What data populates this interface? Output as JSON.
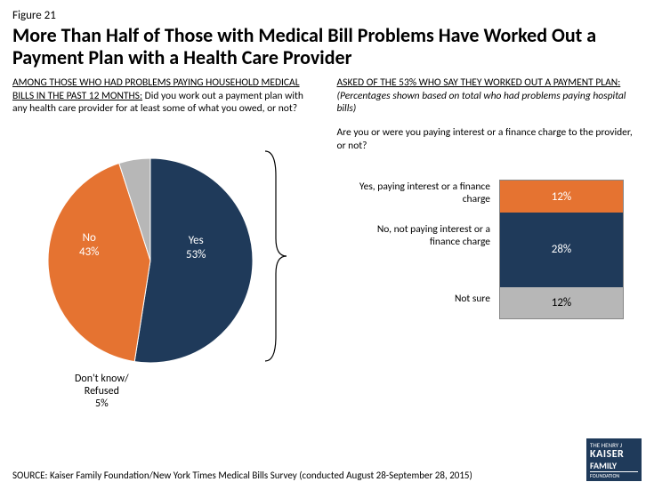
{
  "figure_number": "Figure 21",
  "title": "More Than Half of Those with Medical Bill Problems Have Worked Out a Payment Plan with a Health Care Provider",
  "left": {
    "lead": "AMONG THOSE WHO HAD PROBLEMS PAYING HOUSEHOLD MEDICAL BILLS IN THE PAST 12 MONTHS:",
    "rest": " Did you work out a payment plan with any health care provider for at least some of what you owed, or not?",
    "pie": {
      "type": "pie",
      "slices": [
        {
          "label": "Yes",
          "pct": "53%",
          "value": 53,
          "color": "#1f3a5a"
        },
        {
          "label": "No",
          "pct": "43%",
          "value": 43,
          "color": "#e57331"
        },
        {
          "label": "Don't know/\nRefused",
          "pct": "5%",
          "value": 5,
          "color": "#b7b7b7"
        }
      ],
      "radius": 115,
      "stroke": "#ffffff",
      "stroke_width": 1
    }
  },
  "right": {
    "lead": "ASKED OF THE 53%  WHO SAY THEY WORKED OUT A PAYMENT PLAN:",
    "ital": " (Percentages shown based on total who had problems paying hospital bills)",
    "q2": "Are you or were you paying interest or a finance charge to the provider, or not?",
    "stack": {
      "type": "stacked-bar",
      "total_height": 155,
      "segments": [
        {
          "label": "Yes, paying interest or a finance charge",
          "pct": "12%",
          "value": 12,
          "color": "#e57331",
          "text_color": "#ffffff"
        },
        {
          "label": "No, not paying interest or a finance charge",
          "pct": "28%",
          "value": 28,
          "color": "#1f3a5a",
          "text_color": "#ffffff"
        },
        {
          "label": "Not sure",
          "pct": "12%",
          "value": 12,
          "color": "#b7b7b7",
          "text_color": "#000000"
        }
      ]
    }
  },
  "source": "SOURCE: Kaiser Family Foundation/New York Times Medical Bills Survey (conducted August 28-September 28, 2015)",
  "logo": {
    "top": "THE HENRY J",
    "k": "KAISER",
    "f": "FAMILY",
    "ft": "FOUNDATION"
  },
  "colors": {
    "navy": "#1f3a5a",
    "orange": "#e57331",
    "gray": "#b7b7b7",
    "bg": "#ffffff"
  }
}
